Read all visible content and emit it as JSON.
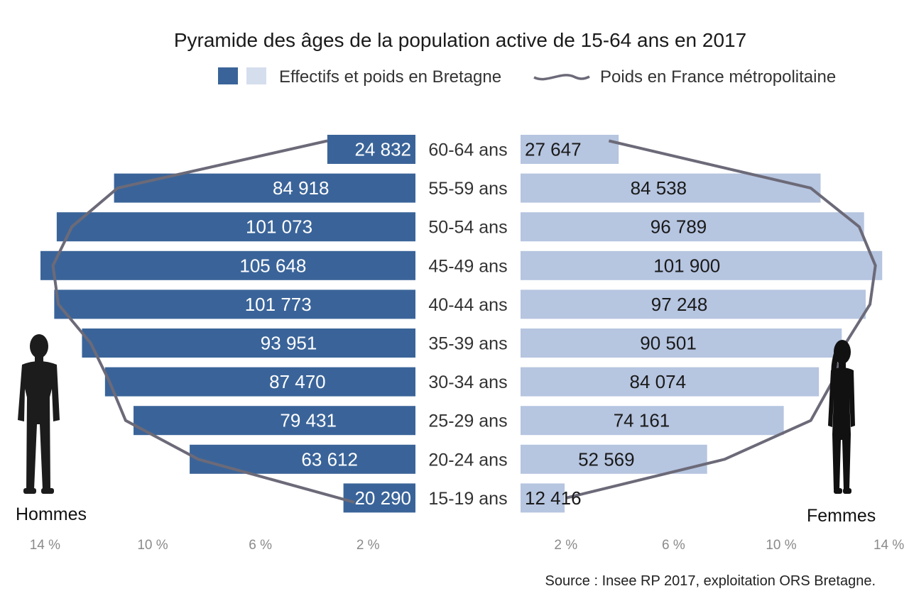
{
  "chart_data": {
    "type": "bar",
    "title": "Pyramide des âges de la population active de 15-64 ans en 2017",
    "legend": {
      "bars_label": "Effectifs et poids en Bretagne",
      "line_label": "Poids en France métropolitaine"
    },
    "categories": [
      "60-64 ans",
      "55-59 ans",
      "50-54 ans",
      "45-49 ans",
      "40-44 ans",
      "35-39 ans",
      "30-34 ans",
      "25-29 ans",
      "20-24 ans",
      "15-19 ans"
    ],
    "men_label": "Hommes",
    "women_label": "Femmes",
    "men_values": [
      24832,
      84918,
      101073,
      105648,
      101773,
      93951,
      87470,
      79431,
      63612,
      20290
    ],
    "women_values": [
      27647,
      84538,
      96789,
      101900,
      97248,
      90501,
      84074,
      74161,
      52569,
      12416
    ],
    "men_value_labels": [
      "24 832",
      "84 918",
      "101 073",
      "105 648",
      "101 773",
      "93 951",
      "87 470",
      "79 431",
      "63 612",
      "20 290"
    ],
    "women_value_labels": [
      "27 647",
      "84 538",
      "96 789",
      "101 900",
      "97 248",
      "90 501",
      "84 074",
      "74 161",
      "52 569",
      "12 416"
    ],
    "france_weight_men_pct": [
      3.4,
      11.2,
      12.9,
      13.6,
      13.4,
      12.2,
      11.5,
      10.9,
      8.2,
      2.4
    ],
    "france_weight_women_pct": [
      3.6,
      11.1,
      12.9,
      13.5,
      13.3,
      12.4,
      11.9,
      11.1,
      7.9,
      2.0
    ],
    "x_ticks_left": [
      "14 %",
      "10 %",
      "6 %",
      "2 %"
    ],
    "x_ticks_right": [
      "2 %",
      "6 %",
      "10 %",
      "14 %"
    ],
    "xlim_pct": [
      0,
      14
    ],
    "colors": {
      "men": "#3a6499",
      "women": "#b6c5e0",
      "line": "#6c6a78",
      "legend_light": "#d5deed"
    },
    "source": "Source : Insee RP 2017, exploitation ORS Bretagne."
  }
}
